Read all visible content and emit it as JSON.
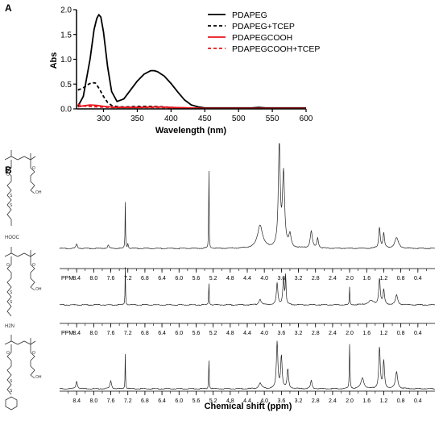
{
  "panels": {
    "a_label": "A",
    "b_label": "B"
  },
  "colors": {
    "black": "#000000",
    "red": "#e8141b"
  },
  "chart_data": [
    {
      "type": "line",
      "panel": "A",
      "xlabel": "Wavelength (nm)",
      "ylabel": "Abs",
      "xlim": [
        260,
        600
      ],
      "ylim": [
        0,
        2.0
      ],
      "xticks": [
        "300",
        "350",
        "400",
        "450",
        "500",
        "550",
        "600"
      ],
      "yticks": [
        "0.0",
        "0.5",
        "1.0",
        "1.5",
        "2.0"
      ],
      "legend_position": "top-right",
      "series": [
        {
          "name": "PDAPEG",
          "color": "#000000",
          "dash": "solid",
          "x": [
            262,
            270,
            280,
            286,
            290,
            293,
            296,
            300,
            306,
            312,
            320,
            330,
            340,
            350,
            360,
            370,
            375,
            380,
            390,
            400,
            410,
            420,
            430,
            440,
            450,
            460,
            500,
            520,
            530,
            540,
            560,
            600
          ],
          "y": [
            0.05,
            0.25,
            1.0,
            1.6,
            1.82,
            1.9,
            1.85,
            1.55,
            0.85,
            0.35,
            0.15,
            0.2,
            0.38,
            0.56,
            0.7,
            0.77,
            0.77,
            0.75,
            0.66,
            0.51,
            0.34,
            0.18,
            0.08,
            0.04,
            0.02,
            0.02,
            0.02,
            0.02,
            0.03,
            0.02,
            0.02,
            0.02
          ]
        },
        {
          "name": "PDAPEG+TCEP",
          "color": "#000000",
          "dash": "dashed",
          "x": [
            262,
            266,
            272,
            278,
            283,
            288,
            294,
            300,
            306,
            312,
            318,
            325,
            335,
            350,
            370,
            390,
            400,
            420,
            450,
            500,
            600
          ],
          "y": [
            0.38,
            0.4,
            0.44,
            0.5,
            0.53,
            0.52,
            0.4,
            0.25,
            0.13,
            0.07,
            0.05,
            0.04,
            0.04,
            0.05,
            0.05,
            0.04,
            0.03,
            0.02,
            0.01,
            0.01,
            0.01
          ]
        },
        {
          "name": "PDAPEGCOOH",
          "color": "#e8141b",
          "dash": "solid",
          "x": [
            262,
            270,
            280,
            290,
            300,
            320,
            350,
            380,
            400,
            450,
            500,
            600
          ],
          "y": [
            0.04,
            0.06,
            0.08,
            0.07,
            0.05,
            0.03,
            0.03,
            0.04,
            0.03,
            0.01,
            0.01,
            0.01
          ]
        },
        {
          "name": "PDAPEGCOOH+TCEP",
          "color": "#e8141b",
          "dash": "dashed",
          "x": [
            262,
            266,
            275,
            290,
            310,
            350,
            380,
            400,
            450,
            500,
            600
          ],
          "y": [
            0.1,
            0.07,
            0.05,
            0.04,
            0.03,
            0.03,
            0.03,
            0.02,
            0.01,
            0.01,
            0.01
          ]
        }
      ]
    },
    {
      "type": "line",
      "panel": "B",
      "xlabel": "Chemical shift (ppm)",
      "ppm_prefix": "PPM",
      "xlim": [
        8.8,
        0.0
      ],
      "xticks": [
        "8.4",
        "8.0",
        "7.6",
        "7.2",
        "6.8",
        "6.4",
        "6.0",
        "5.6",
        "5.2",
        "4.8",
        "4.4",
        "4.0",
        "3.6",
        "3.2",
        "2.8",
        "2.4",
        "2.0",
        "1.6",
        "1.2",
        "0.8",
        "0.4"
      ],
      "spectra": [
        {
          "structure_label": "HOOC",
          "peaks": [
            [
              8.4,
              0.04,
              0.02
            ],
            [
              7.66,
              0.03,
              0.02
            ],
            [
              7.26,
              0.45,
              0.006
            ],
            [
              7.2,
              0.05,
              0.01
            ],
            [
              5.3,
              1.0,
              0.005
            ],
            [
              4.1,
              0.22,
              0.07
            ],
            [
              3.65,
              1.0,
              0.025
            ],
            [
              3.55,
              0.7,
              0.03
            ],
            [
              3.4,
              0.12,
              0.03
            ],
            [
              2.9,
              0.16,
              0.03
            ],
            [
              2.75,
              0.1,
              0.02
            ],
            [
              1.3,
              0.2,
              0.02
            ],
            [
              1.2,
              0.14,
              0.02
            ],
            [
              0.9,
              0.1,
              0.05
            ]
          ]
        },
        {
          "structure_label": "H2N",
          "peaks": [
            [
              7.26,
              0.8,
              0.006
            ],
            [
              5.3,
              0.55,
              0.006
            ],
            [
              4.1,
              0.12,
              0.03
            ],
            [
              3.7,
              0.45,
              0.02
            ],
            [
              3.55,
              0.55,
              0.02
            ],
            [
              3.5,
              0.6,
              0.01
            ],
            [
              2.0,
              0.4,
              0.006
            ],
            [
              1.3,
              0.55,
              0.02
            ],
            [
              1.2,
              0.3,
              0.02
            ],
            [
              0.9,
              0.2,
              0.03
            ],
            [
              1.5,
              0.08,
              0.08
            ]
          ]
        },
        {
          "structure_label": "",
          "peaks": [
            [
              8.4,
              0.14,
              0.02
            ],
            [
              7.6,
              0.15,
              0.02
            ],
            [
              7.26,
              0.65,
              0.006
            ],
            [
              5.3,
              0.65,
              0.006
            ],
            [
              4.1,
              0.1,
              0.04
            ],
            [
              3.7,
              0.85,
              0.02
            ],
            [
              3.6,
              0.6,
              0.02
            ],
            [
              3.45,
              0.35,
              0.02
            ],
            [
              2.9,
              0.15,
              0.02
            ],
            [
              2.0,
              0.85,
              0.008
            ],
            [
              1.7,
              0.2,
              0.04
            ],
            [
              1.3,
              0.75,
              0.02
            ],
            [
              1.2,
              0.5,
              0.02
            ],
            [
              0.9,
              0.3,
              0.03
            ]
          ]
        }
      ]
    }
  ]
}
